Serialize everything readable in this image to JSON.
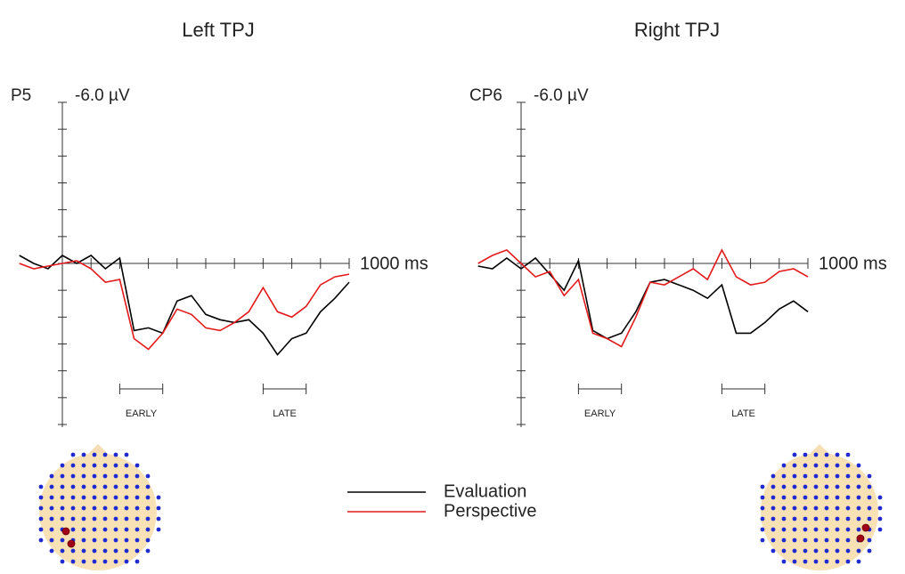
{
  "chart_data": [
    {
      "type": "line",
      "title": "Left TPJ",
      "channel": "P5",
      "x": [
        -150,
        -100,
        -50,
        0,
        50,
        100,
        150,
        200,
        250,
        300,
        350,
        400,
        450,
        500,
        550,
        600,
        650,
        700,
        750,
        800,
        850,
        900,
        950,
        1000
      ],
      "xlim": [
        -150,
        1000
      ],
      "xticks": [
        0,
        100,
        200,
        300,
        400,
        500,
        600,
        700,
        800,
        900,
        {
          "value": 1000,
          "label": "1000 ms"
        }
      ],
      "ylim": [
        -6,
        6
      ],
      "yticks": [
        {
          "value": -6,
          "label": "-6.0 µV"
        },
        -5,
        -4,
        -3,
        -2,
        -1,
        0,
        1,
        2,
        3,
        4,
        5,
        6
      ],
      "series": [
        {
          "name": "Evaluation",
          "color": "#000000",
          "values": [
            -0.3,
            0.0,
            0.2,
            -0.3,
            0.0,
            -0.3,
            0.2,
            -0.2,
            2.5,
            2.4,
            2.6,
            1.4,
            1.2,
            1.9,
            2.1,
            2.2,
            2.1,
            2.6,
            3.4,
            2.8,
            2.6,
            1.8,
            1.3,
            0.7
          ]
        },
        {
          "name": "Perspective",
          "color": "#e31a1c",
          "values": [
            0.0,
            0.2,
            0.1,
            0.0,
            -0.1,
            0.2,
            0.7,
            0.6,
            2.8,
            3.2,
            2.6,
            1.7,
            1.9,
            2.4,
            2.5,
            2.2,
            1.8,
            0.9,
            1.8,
            2.0,
            1.6,
            0.8,
            0.5,
            0.4
          ]
        }
      ],
      "windows": [
        {
          "label": "EARLY",
          "range": [
            200,
            350
          ]
        },
        {
          "label": "LATE",
          "range": [
            700,
            850
          ]
        }
      ]
    },
    {
      "type": "line",
      "title": "Right TPJ",
      "channel": "CP6",
      "x": [
        -150,
        -100,
        -50,
        0,
        50,
        100,
        150,
        200,
        250,
        300,
        350,
        400,
        450,
        500,
        550,
        600,
        650,
        700,
        750,
        800,
        850,
        900,
        950,
        1000
      ],
      "xlim": [
        -150,
        1000
      ],
      "xticks": [
        0,
        100,
        200,
        300,
        400,
        500,
        600,
        700,
        800,
        900,
        {
          "value": 1000,
          "label": "1000 ms"
        }
      ],
      "ylim": [
        -6,
        6
      ],
      "yticks": [
        {
          "value": -6,
          "label": "-6.0 µV"
        },
        -5,
        -4,
        -3,
        -2,
        -1,
        0,
        1,
        2,
        3,
        4,
        5,
        6
      ],
      "series": [
        {
          "name": "Evaluation",
          "color": "#000000",
          "values": [
            0.1,
            0.2,
            -0.2,
            0.2,
            -0.2,
            0.4,
            1.0,
            -0.1,
            2.5,
            2.8,
            2.6,
            1.8,
            0.7,
            0.6,
            0.8,
            1.0,
            1.3,
            0.8,
            2.6,
            2.6,
            2.2,
            1.7,
            1.4,
            1.8
          ]
        },
        {
          "name": "Perspective",
          "color": "#e31a1c",
          "values": [
            0.0,
            -0.3,
            -0.5,
            0.0,
            0.5,
            0.3,
            1.2,
            0.6,
            2.6,
            2.8,
            3.1,
            2.0,
            0.7,
            0.8,
            0.5,
            0.2,
            0.6,
            -0.5,
            0.5,
            0.8,
            0.7,
            0.3,
            0.2,
            0.5
          ]
        }
      ],
      "windows": [
        {
          "label": "EARLY",
          "range": [
            200,
            350
          ]
        },
        {
          "label": "LATE",
          "range": [
            700,
            850
          ]
        }
      ]
    }
  ]
}
